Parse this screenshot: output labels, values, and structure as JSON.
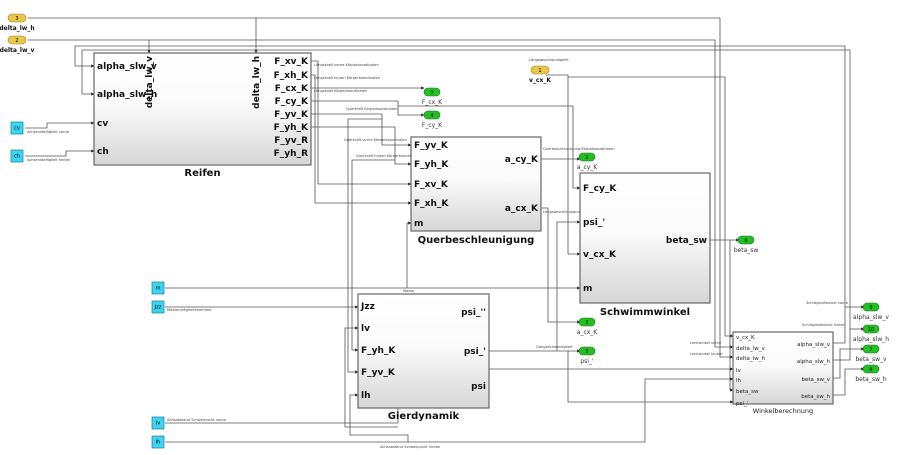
{
  "colors": {
    "inport": "#e8c84a",
    "outport": "#22c022",
    "constant": "#3cd4f0",
    "block_border": "#666666"
  },
  "inports": [
    {
      "id": "delta_lw_h",
      "number": "3",
      "label": "delta_lw_h"
    },
    {
      "id": "delta_lw_v",
      "number": "2",
      "label": "delta_lw_v"
    },
    {
      "id": "v_cx_K",
      "number": "1",
      "label": "v_cx_K"
    }
  ],
  "outports": [
    {
      "id": "F_cx_K",
      "number": "3",
      "label": "F_cx_K"
    },
    {
      "id": "F_cy_K",
      "number": "4",
      "label": "F_cy_K"
    },
    {
      "id": "a_cy_K",
      "number": "2",
      "label": "a_cy_K"
    },
    {
      "id": "beta_sw",
      "number": "6",
      "label": "beta_sw"
    },
    {
      "id": "a_cx_K",
      "number": "1",
      "label": "a_cx_K"
    },
    {
      "id": "psi_d",
      "number": "5",
      "label": "psi_'"
    },
    {
      "id": "alpha_slw_v",
      "number": "9",
      "label": "alpha_slw_v"
    },
    {
      "id": "alpha_slw_h",
      "number": "10",
      "label": "alpha_slw_h"
    },
    {
      "id": "beta_sw_v",
      "number": "7",
      "label": "beta_sw_v"
    },
    {
      "id": "beta_sw_h",
      "number": "8",
      "label": "beta_sw_h"
    }
  ],
  "constants": [
    {
      "id": "cv",
      "value": "cv"
    },
    {
      "id": "ch",
      "value": "ch"
    },
    {
      "id": "m",
      "value": "m"
    },
    {
      "id": "Jzz",
      "value": "Jzz"
    },
    {
      "id": "lv",
      "value": "lv"
    },
    {
      "id": "lh",
      "value": "lh"
    }
  ],
  "blocks": [
    {
      "id": "reifen",
      "name": "Reifen",
      "inputs": [
        "alpha_slw_v",
        "alpha_slw_h",
        "cv",
        "ch"
      ],
      "top_inputs": [
        "delta_lw_v",
        "delta_lw_h"
      ],
      "outputs": [
        "F_xv_K",
        "F_xh_K",
        "F_cx_K",
        "F_cy_K",
        "F_yv_K",
        "F_yh_K",
        "F_yv_R",
        "F_yh_R"
      ]
    },
    {
      "id": "quer",
      "name": "Querbeschleunigung",
      "inputs": [
        "F_yv_K",
        "F_yh_K",
        "F_xv_K",
        "F_xh_K",
        "m"
      ],
      "outputs": [
        "a_cy_K",
        "a_cx_K"
      ]
    },
    {
      "id": "schwimm",
      "name": "Schwimmwinkel",
      "inputs": [
        "F_cy_K",
        "psi_'",
        "v_cx_K",
        "m"
      ],
      "outputs": [
        "beta_sw"
      ]
    },
    {
      "id": "gier",
      "name": "Gierdynamik",
      "inputs": [
        "Jzz",
        "lv",
        "F_yh_K",
        "F_yv_K",
        "lh"
      ],
      "outputs": [
        "psi_''",
        "psi_'",
        "psi"
      ]
    },
    {
      "id": "winkel",
      "name": "Winkelberechnung",
      "inputs": [
        "v_cx_K",
        "delta_lw_v",
        "delta_lw_h",
        "lv",
        "lh",
        "beta_sw",
        "psi_'"
      ],
      "outputs": [
        "alpha_slw_v",
        "alpha_slw_h",
        "beta_sw_v",
        "beta_sw_h"
      ]
    }
  ],
  "signal_labels": {
    "cv": "Achsensteifigkeit vorne",
    "ch": "Achsensteifigkeit hinten",
    "fxv": "Längskraft vorne Körperkoordinaten",
    "fxh": "Längskraft hinten Körperkoordinaten",
    "fcx": "Längskraft Körperkoordinaten",
    "fcy": "Querkraft Körperkoordinaten",
    "fyv": "Querkraft vorne Körperkoordinaten",
    "fyh": "Querkraft hinten Körperkoordinaten",
    "acy": "Querbeschleunigung Körperkoordinaten",
    "acx": "Längsbeschleunigung Körperkoordinaten",
    "vcx": "Längsgeschwindigkeit",
    "m": "Masse",
    "jzz": "Massenträgheitsmoment",
    "lv": "Achsabstand Schwerpunkt vorne",
    "lh": "Achsabstand Schwerpunkt hinten",
    "psi": "Giergeschwindigkeit",
    "dlv": "Lenkwinkel vorne",
    "dlh": "Lenkwinkel hinten",
    "asv": "Schräglaufwinkel vorne",
    "ash": "Schräglaufwinkel hinten"
  }
}
